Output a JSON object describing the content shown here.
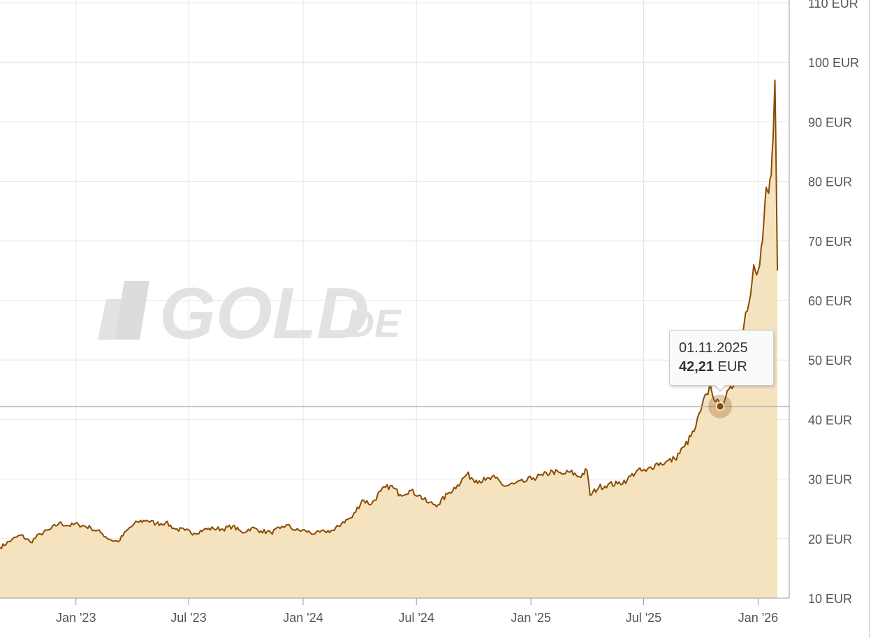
{
  "watermark": {
    "brand": "GOLD",
    "suffix": ".DE"
  },
  "tooltip": {
    "date": "01.11.2025",
    "value": "42,21",
    "unit": "EUR"
  },
  "chart_data": {
    "type": "area",
    "title": "",
    "xlabel": "",
    "ylabel": "",
    "unit": "EUR",
    "x_range": [
      "2022-09-01",
      "2026-02-20"
    ],
    "ylim": [
      10,
      110
    ],
    "y_ticks": [
      10,
      20,
      30,
      40,
      50,
      60,
      70,
      80,
      90,
      100,
      110
    ],
    "y_tick_labels": [
      "10 EUR",
      "20 EUR",
      "30 EUR",
      "40 EUR",
      "50 EUR",
      "60 EUR",
      "70 EUR",
      "80 EUR",
      "90 EUR",
      "100 EUR",
      "110 EUR"
    ],
    "x_ticks": [
      "2023-01-01",
      "2023-07-01",
      "2024-01-01",
      "2024-07-01",
      "2025-01-01",
      "2025-07-01",
      "2026-01-01"
    ],
    "x_tick_labels": [
      "Jan '23",
      "Jul '23",
      "Jan '24",
      "Jul '24",
      "Jan '25",
      "Jul '25",
      "Jan '26"
    ],
    "grid": true,
    "line_color": "#8a4a00",
    "fill_color": "#f5e3bf",
    "crosshair_value": 42.21,
    "highlight_point": {
      "date": "2025-11-01",
      "value": 42.21
    },
    "series": [
      {
        "x": [
          "2022-09-01",
          "2022-09-20",
          "2022-10-05",
          "2022-10-20",
          "2022-11-05",
          "2022-11-20",
          "2022-12-05",
          "2022-12-20",
          "2023-01-05",
          "2023-01-25",
          "2023-02-10",
          "2023-02-25",
          "2023-03-10",
          "2023-03-25",
          "2023-04-10",
          "2023-04-25",
          "2023-05-10",
          "2023-05-25",
          "2023-06-10",
          "2023-06-25",
          "2023-07-10",
          "2023-07-25",
          "2023-08-10",
          "2023-08-25",
          "2023-09-10",
          "2023-09-25",
          "2023-10-10",
          "2023-10-25",
          "2023-11-10",
          "2023-11-25",
          "2023-12-05",
          "2023-12-20",
          "2024-01-05",
          "2024-01-20",
          "2024-02-05",
          "2024-02-20",
          "2024-03-05",
          "2024-03-20",
          "2024-04-05",
          "2024-04-20",
          "2024-05-05",
          "2024-05-20",
          "2024-06-05",
          "2024-06-20",
          "2024-07-05",
          "2024-07-20",
          "2024-08-05",
          "2024-08-20",
          "2024-09-05",
          "2024-09-20",
          "2024-10-05",
          "2024-10-20",
          "2024-11-05",
          "2024-11-20",
          "2024-12-05",
          "2024-12-20",
          "2025-01-05",
          "2025-01-20",
          "2025-02-05",
          "2025-02-20",
          "2025-03-05",
          "2025-03-20",
          "2025-04-01",
          "2025-04-06",
          "2025-04-20",
          "2025-05-05",
          "2025-05-20",
          "2025-06-05",
          "2025-06-20",
          "2025-07-05",
          "2025-07-20",
          "2025-08-05",
          "2025-08-20",
          "2025-09-05",
          "2025-09-20",
          "2025-10-01",
          "2025-10-10",
          "2025-10-17",
          "2025-10-25",
          "2025-11-01",
          "2025-11-10",
          "2025-11-20",
          "2025-12-01",
          "2025-12-06",
          "2025-12-12",
          "2025-12-20",
          "2025-12-25",
          "2026-01-01",
          "2026-01-06",
          "2026-01-10",
          "2026-01-14",
          "2026-01-18",
          "2026-01-22",
          "2026-01-25",
          "2026-01-28",
          "2026-01-30",
          "2026-02-01"
        ],
        "y": [
          18.5,
          19.8,
          20.6,
          19.4,
          20.8,
          21.5,
          22.6,
          22.2,
          22.4,
          21.8,
          21.0,
          19.8,
          19.5,
          21.5,
          22.8,
          23.1,
          22.5,
          22.7,
          21.6,
          21.4,
          20.9,
          21.5,
          21.7,
          21.6,
          22.1,
          21.0,
          21.8,
          21.3,
          21.0,
          21.7,
          22.3,
          21.4,
          21.3,
          20.8,
          21.2,
          21.4,
          22.8,
          23.6,
          26.5,
          25.8,
          28.0,
          28.9,
          27.4,
          28.1,
          27.3,
          26.0,
          25.7,
          27.5,
          29.0,
          30.8,
          29.8,
          29.8,
          30.2,
          28.8,
          29.2,
          29.5,
          30.2,
          30.6,
          31.3,
          30.8,
          31.2,
          30.4,
          31.5,
          27.3,
          28.6,
          29.1,
          29.2,
          29.9,
          31.4,
          31.3,
          32.5,
          32.8,
          33.4,
          35.5,
          38.0,
          41.5,
          44.3,
          45.5,
          43.0,
          42.21,
          43.8,
          45.2,
          48.5,
          53.0,
          58.0,
          61.0,
          66.0,
          65.0,
          69.0,
          73.0,
          79.0,
          78.0,
          81.0,
          87.0,
          97.0,
          82.0,
          65.0
        ]
      }
    ]
  }
}
